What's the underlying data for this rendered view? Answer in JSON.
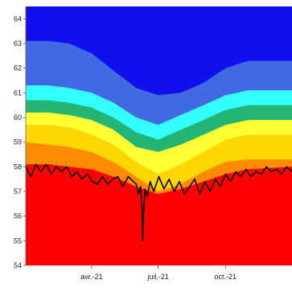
{
  "chart_data": {
    "type": "area",
    "title": "",
    "xlabel": "",
    "ylabel": "",
    "ylim": [
      54,
      64.5
    ],
    "xlim": [
      "2021-01-01",
      "2021-12-31"
    ],
    "y_ticks": [
      "54",
      "55",
      "56",
      "57",
      "58",
      "59",
      "60",
      "61",
      "62",
      "63",
      "64"
    ],
    "x_ticks": [
      {
        "label": "avr.-21",
        "date": "2021-04-01"
      },
      {
        "label": "juil.-21",
        "date": "2021-07-01"
      },
      {
        "label": "oct.-21",
        "date": "2021-10-01"
      }
    ],
    "grid": false,
    "legend": "none",
    "x": [
      "2021-01-01",
      "2021-02-01",
      "2021-03-01",
      "2021-04-01",
      "2021-05-01",
      "2021-06-01",
      "2021-07-01",
      "2021-08-01",
      "2021-09-01",
      "2021-10-01",
      "2021-11-01",
      "2021-12-31"
    ],
    "bands": [
      {
        "color": "#ff0000",
        "upper": [
          58.1,
          58.1,
          58.0,
          57.9,
          57.6,
          57.2,
          56.9,
          57.1,
          57.4,
          57.7,
          57.9,
          58.0
        ]
      },
      {
        "color": "#ff8c00",
        "upper": [
          59.0,
          58.9,
          58.8,
          58.6,
          58.2,
          57.6,
          57.0,
          57.3,
          57.8,
          58.2,
          58.3,
          58.3
        ]
      },
      {
        "color": "#ffd700",
        "upper": [
          59.7,
          59.7,
          59.6,
          59.3,
          58.9,
          58.2,
          57.7,
          58.1,
          58.6,
          59.1,
          59.3,
          59.3
        ]
      },
      {
        "color": "#ffff33",
        "upper": [
          60.2,
          60.2,
          60.1,
          59.9,
          59.5,
          58.8,
          58.6,
          58.9,
          59.3,
          59.7,
          59.9,
          59.9
        ]
      },
      {
        "color": "#22b573",
        "upper": [
          60.7,
          60.7,
          60.6,
          60.4,
          60.0,
          59.4,
          59.1,
          59.5,
          59.9,
          60.3,
          60.5,
          60.5
        ]
      },
      {
        "color": "#33ffff",
        "upper": [
          61.3,
          61.3,
          61.2,
          61.0,
          60.6,
          60.0,
          59.7,
          60.1,
          60.5,
          60.9,
          61.1,
          61.1
        ]
      },
      {
        "color": "#4169e1",
        "upper": [
          63.1,
          63.1,
          63.0,
          62.6,
          61.9,
          61.2,
          60.9,
          61.0,
          61.4,
          62.0,
          62.3,
          62.3
        ]
      },
      {
        "color": "#1010ee",
        "upper": [
          64.5,
          64.5,
          64.5,
          64.5,
          64.5,
          64.5,
          64.5,
          64.5,
          64.5,
          64.5,
          64.5,
          64.5
        ]
      }
    ],
    "series": [
      {
        "color": "#000000",
        "x": [
          "2021-01-01",
          "2021-01-08",
          "2021-01-15",
          "2021-01-22",
          "2021-01-29",
          "2021-02-05",
          "2021-02-12",
          "2021-02-19",
          "2021-02-26",
          "2021-03-05",
          "2021-03-12",
          "2021-03-19",
          "2021-03-26",
          "2021-04-02",
          "2021-04-09",
          "2021-04-16",
          "2021-04-23",
          "2021-04-30",
          "2021-05-07",
          "2021-05-14",
          "2021-05-21",
          "2021-05-28",
          "2021-06-01",
          "2021-06-04",
          "2021-06-07",
          "2021-06-09",
          "2021-06-10",
          "2021-06-11",
          "2021-06-13",
          "2021-06-16",
          "2021-06-20",
          "2021-06-25",
          "2021-07-02",
          "2021-07-09",
          "2021-07-16",
          "2021-07-23",
          "2021-07-30",
          "2021-08-06",
          "2021-08-13",
          "2021-08-20",
          "2021-08-27",
          "2021-09-03",
          "2021-09-10",
          "2021-09-17",
          "2021-09-24",
          "2021-10-01",
          "2021-10-08",
          "2021-10-15",
          "2021-10-22",
          "2021-10-29",
          "2021-11-05",
          "2021-11-12",
          "2021-11-19",
          "2021-11-26",
          "2021-12-03",
          "2021-12-10",
          "2021-12-17",
          "2021-12-24",
          "2021-12-31"
        ],
        "y": [
          58.0,
          57.6,
          58.1,
          57.8,
          58.1,
          57.7,
          58.0,
          57.8,
          58.0,
          57.6,
          57.8,
          57.5,
          57.7,
          57.4,
          57.3,
          57.6,
          57.3,
          57.5,
          57.6,
          57.2,
          57.6,
          57.4,
          57.3,
          56.9,
          57.2,
          56.3,
          55.0,
          56.1,
          57.1,
          56.8,
          57.4,
          57.0,
          57.6,
          57.1,
          57.5,
          57.0,
          57.4,
          56.9,
          57.2,
          57.5,
          56.9,
          57.4,
          57.0,
          57.5,
          57.2,
          57.7,
          57.4,
          57.8,
          57.6,
          57.9,
          57.6,
          57.8,
          57.7,
          58.0,
          57.8,
          57.9,
          57.7,
          58.0,
          57.8
        ]
      }
    ]
  }
}
